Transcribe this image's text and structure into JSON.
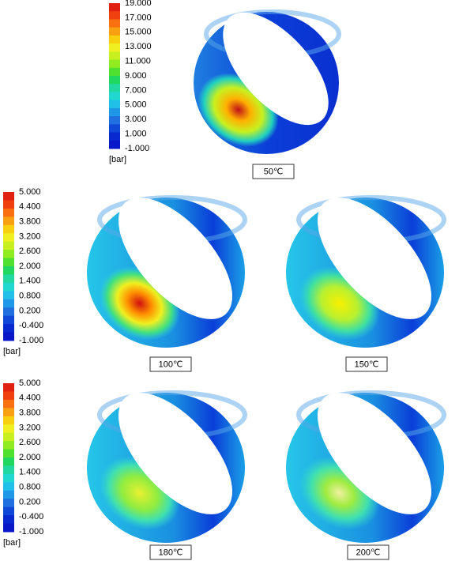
{
  "legends": [
    {
      "ticks": [
        "19.000",
        "17.000",
        "15.000",
        "13.000",
        "11.000",
        "9.000",
        "7.000",
        "5.000",
        "3.000",
        "1.000",
        "-1.000"
      ],
      "unit": "[bar]"
    },
    {
      "ticks": [
        "5.000",
        "4.400",
        "3.800",
        "3.200",
        "2.600",
        "2.000",
        "1.400",
        "0.800",
        "0.200",
        "-0.400",
        "-1.000"
      ],
      "unit": "[bar]"
    },
    {
      "ticks": [
        "5.000",
        "4.400",
        "3.800",
        "3.200",
        "2.600",
        "2.000",
        "1.400",
        "0.800",
        "0.200",
        "-0.400",
        "-1.000"
      ],
      "unit": "[bar]"
    }
  ],
  "panels": [
    {
      "label": "50℃"
    },
    {
      "label": "100℃"
    },
    {
      "label": "150℃"
    },
    {
      "label": "180℃"
    },
    {
      "label": "200℃"
    }
  ]
}
